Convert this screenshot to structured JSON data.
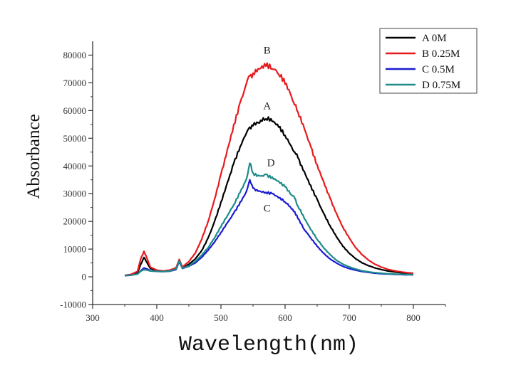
{
  "chart_data": {
    "type": "line",
    "title": "",
    "xlabel": "Wavelength(nm)",
    "ylabel": "Absorbance",
    "xlim": [
      300,
      850
    ],
    "ylim": [
      -10000,
      85000
    ],
    "xticks": [
      300,
      400,
      500,
      600,
      700,
      800
    ],
    "yticks": [
      -10000,
      0,
      10000,
      20000,
      30000,
      40000,
      50000,
      60000,
      70000,
      80000
    ],
    "grid": false,
    "legend_position": "top-right",
    "x": [
      350,
      360,
      370,
      375,
      380,
      385,
      390,
      400,
      410,
      420,
      430,
      435,
      440,
      450,
      460,
      470,
      480,
      490,
      500,
      510,
      520,
      530,
      540,
      545,
      550,
      560,
      570,
      580,
      590,
      600,
      610,
      615,
      620,
      630,
      640,
      650,
      660,
      670,
      680,
      690,
      700,
      710,
      720,
      730,
      740,
      750,
      760,
      770,
      780,
      790,
      800
    ],
    "series": [
      {
        "name": "A 0M",
        "color": "#000000",
        "label": "A",
        "values": [
          500,
          800,
          1500,
          4500,
          7000,
          5000,
          3000,
          2200,
          2000,
          2200,
          3000,
          6000,
          3200,
          4500,
          6500,
          9500,
          14000,
          20000,
          27000,
          34000,
          41000,
          47000,
          52000,
          54000,
          54500,
          55500,
          57000,
          56000,
          54000,
          51000,
          47000,
          45000,
          43000,
          38000,
          33000,
          28000,
          23000,
          18500,
          14500,
          11000,
          8500,
          6500,
          5000,
          4000,
          3200,
          2600,
          2100,
          1800,
          1500,
          1300,
          1200
        ]
      },
      {
        "name": "B 0.25M",
        "color": "#e8191c",
        "label": "B",
        "values": [
          500,
          900,
          2000,
          6500,
          9200,
          6500,
          3500,
          2400,
          2100,
          2400,
          3200,
          6300,
          3500,
          5500,
          8500,
          13500,
          20000,
          28000,
          37000,
          46000,
          55000,
          63000,
          70000,
          72500,
          73500,
          75000,
          76000,
          75000,
          73000,
          69500,
          65000,
          62000,
          59500,
          53500,
          47000,
          40500,
          34500,
          28500,
          23000,
          18000,
          14000,
          10500,
          8000,
          6000,
          4500,
          3500,
          2700,
          2200,
          1800,
          1500,
          1300
        ]
      },
      {
        "name": "C 0.5M",
        "color": "#1b1bd0",
        "label": "C",
        "values": [
          400,
          600,
          1000,
          2200,
          3200,
          2800,
          2200,
          2000,
          1900,
          2000,
          2600,
          5500,
          3000,
          3800,
          5000,
          7000,
          9500,
          12500,
          16000,
          19500,
          23000,
          27000,
          31000,
          35000,
          32000,
          31000,
          30500,
          30000,
          28500,
          27000,
          24500,
          23500,
          21000,
          17000,
          14000,
          11000,
          8500,
          6500,
          5000,
          3800,
          3000,
          2400,
          1900,
          1600,
          1300,
          1100,
          1000,
          900,
          800,
          750,
          700
        ]
      },
      {
        "name": "D 0.75M",
        "color": "#1e8a8a",
        "label": "D",
        "values": [
          400,
          600,
          1000,
          2000,
          2600,
          2400,
          2100,
          2000,
          1900,
          2100,
          2800,
          5800,
          3100,
          4000,
          5500,
          7800,
          10500,
          14000,
          18000,
          22000,
          26000,
          30500,
          35500,
          41000,
          37500,
          36500,
          37000,
          36000,
          34500,
          32500,
          29500,
          28500,
          25500,
          21000,
          17000,
          13500,
          10500,
          8000,
          6000,
          4600,
          3600,
          2800,
          2200,
          1800,
          1500,
          1300,
          1100,
          1000,
          900,
          850,
          800
        ]
      }
    ],
    "annotations": [
      {
        "text": "B",
        "x": 572,
        "y": 80500
      },
      {
        "text": "A",
        "x": 572,
        "y": 60500
      },
      {
        "text": "D",
        "x": 578,
        "y": 40000
      },
      {
        "text": "C",
        "x": 572,
        "y": 23500
      }
    ]
  }
}
